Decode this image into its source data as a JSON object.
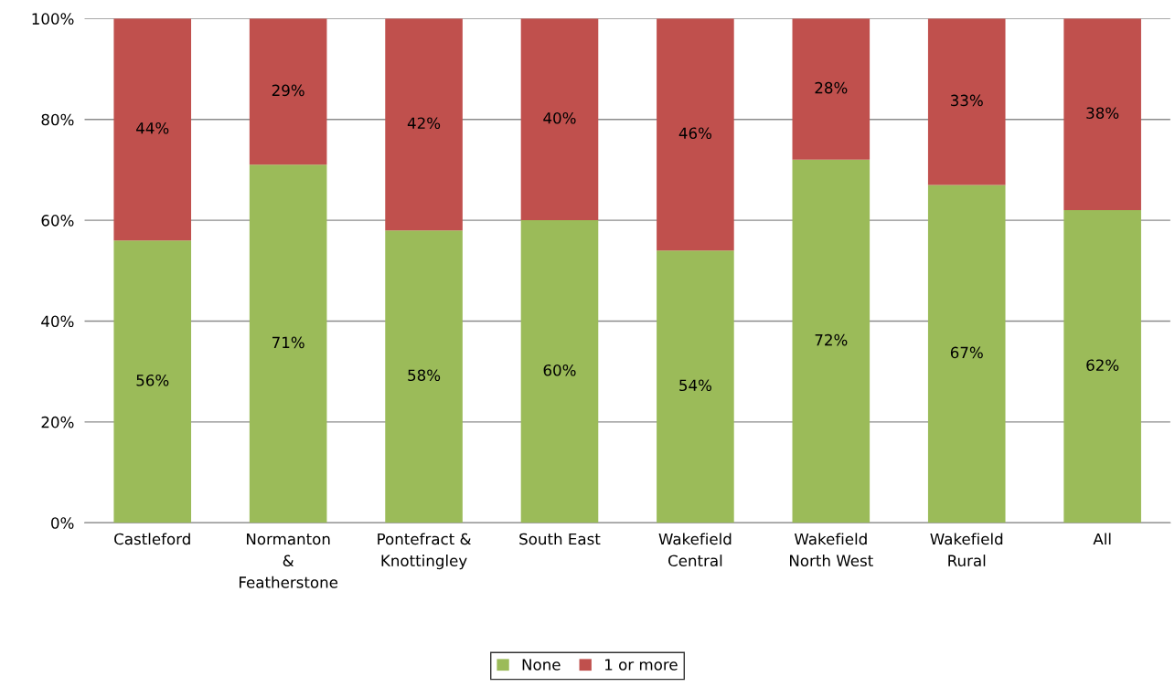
{
  "chart_data": {
    "type": "bar",
    "stacked": true,
    "categories": [
      "Castleford",
      "Normanton\n&\nFeatherstone",
      "Pontefract &\nKnottingley",
      "South East",
      "Wakefield\nCentral",
      "Wakefield\nNorth West",
      "Wakefield\nRural",
      "All"
    ],
    "series": [
      {
        "name": "None",
        "color": "#9bbb59",
        "values": [
          56,
          71,
          58,
          60,
          54,
          72,
          67,
          62
        ],
        "value_labels": [
          "56%",
          "71%",
          "58%",
          "60%",
          "54%",
          "72%",
          "67%",
          "62%"
        ]
      },
      {
        "name": "1 or more",
        "color": "#c0504d",
        "values": [
          44,
          29,
          42,
          40,
          46,
          28,
          33,
          38
        ],
        "value_labels": [
          "44%",
          "29%",
          "42%",
          "40%",
          "46%",
          "28%",
          "33%",
          "38%"
        ]
      }
    ],
    "ylim": [
      0,
      100
    ],
    "yticks": [
      {
        "value": 0,
        "label": "0%"
      },
      {
        "value": 20,
        "label": "20%"
      },
      {
        "value": 40,
        "label": "40%"
      },
      {
        "value": 60,
        "label": "60%"
      },
      {
        "value": 80,
        "label": "80%"
      },
      {
        "value": 100,
        "label": "100%"
      }
    ],
    "grid": "y",
    "legend": "bottom"
  }
}
